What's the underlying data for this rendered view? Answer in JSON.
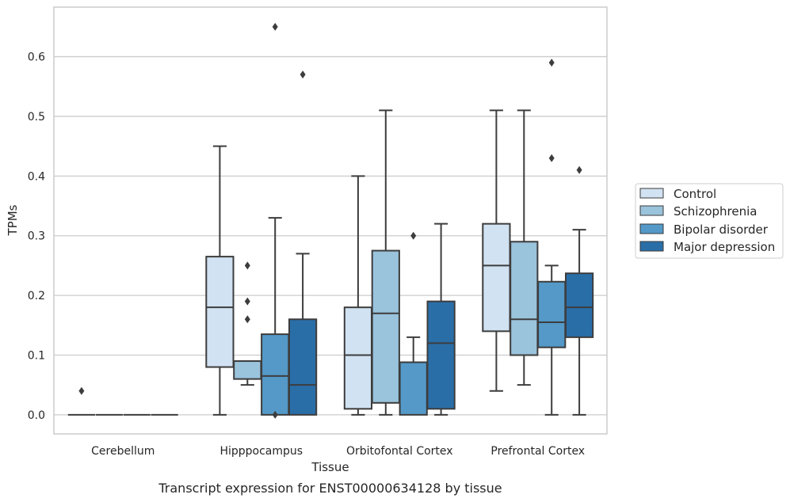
{
  "caption": "Transcript expression for ENST00000634128 by tissue",
  "chart_data": {
    "type": "box",
    "xlabel": "Tissue",
    "ylabel": "TPMs",
    "ylim": [
      -0.032,
      0.683
    ],
    "yticks": [
      0.0,
      0.1,
      0.2,
      0.3,
      0.4,
      0.5,
      0.6
    ],
    "ytick_labels": [
      "0.0",
      "0.1",
      "0.2",
      "0.3",
      "0.4",
      "0.5",
      "0.6"
    ],
    "grid": "horizontal",
    "legend_position": "right",
    "categories": [
      "Cerebellum",
      "Hipppocampus",
      "Orbitofontal Cortex",
      "Prefrontal Cortex"
    ],
    "series": [
      {
        "name": "Control",
        "color": "#d1e2f2",
        "boxes": [
          {
            "q1": 0.0,
            "median": 0.0,
            "q3": 0.0,
            "whisker_low": 0.0,
            "whisker_high": 0.0,
            "outliers": [
              0.04
            ]
          },
          {
            "q1": 0.08,
            "median": 0.18,
            "q3": 0.265,
            "whisker_low": 0.0,
            "whisker_high": 0.45,
            "outliers": []
          },
          {
            "q1": 0.01,
            "median": 0.1,
            "q3": 0.18,
            "whisker_low": 0.0,
            "whisker_high": 0.4,
            "outliers": []
          },
          {
            "q1": 0.14,
            "median": 0.25,
            "q3": 0.32,
            "whisker_low": 0.04,
            "whisker_high": 0.51,
            "outliers": []
          }
        ]
      },
      {
        "name": "Schizophrenia",
        "color": "#9ac3dc",
        "boxes": [
          {
            "q1": 0.0,
            "median": 0.0,
            "q3": 0.0,
            "whisker_low": 0.0,
            "whisker_high": 0.0,
            "outliers": []
          },
          {
            "q1": 0.06,
            "median": 0.09,
            "q3": 0.09,
            "whisker_low": 0.05,
            "whisker_high": 0.09,
            "outliers": [
              0.25,
              0.19,
              0.16
            ]
          },
          {
            "q1": 0.02,
            "median": 0.17,
            "q3": 0.275,
            "whisker_low": 0.0,
            "whisker_high": 0.51,
            "outliers": []
          },
          {
            "q1": 0.1,
            "median": 0.16,
            "q3": 0.29,
            "whisker_low": 0.05,
            "whisker_high": 0.51,
            "outliers": []
          }
        ]
      },
      {
        "name": "Bipolar disorder",
        "color": "#5499c8",
        "boxes": [
          {
            "q1": 0.0,
            "median": 0.0,
            "q3": 0.0,
            "whisker_low": 0.0,
            "whisker_high": 0.0,
            "outliers": []
          },
          {
            "q1": 0.0,
            "median": 0.065,
            "q3": 0.135,
            "whisker_low": 0.0,
            "whisker_high": 0.33,
            "outliers": [
              0.0,
              0.65
            ]
          },
          {
            "q1": 0.0,
            "median": 0.088,
            "q3": 0.088,
            "whisker_low": 0.0,
            "whisker_high": 0.13,
            "outliers": [
              0.3
            ]
          },
          {
            "q1": 0.113,
            "median": 0.155,
            "q3": 0.223,
            "whisker_low": 0.0,
            "whisker_high": 0.25,
            "outliers": [
              0.59,
              0.43
            ]
          }
        ]
      },
      {
        "name": "Major depression",
        "color": "#2a6ea8",
        "boxes": [
          {
            "q1": 0.0,
            "median": 0.0,
            "q3": 0.0,
            "whisker_low": 0.0,
            "whisker_high": 0.0,
            "outliers": []
          },
          {
            "q1": 0.0,
            "median": 0.05,
            "q3": 0.16,
            "whisker_low": 0.0,
            "whisker_high": 0.27,
            "outliers": [
              0.57
            ]
          },
          {
            "q1": 0.01,
            "median": 0.12,
            "q3": 0.19,
            "whisker_low": 0.0,
            "whisker_high": 0.32,
            "outliers": []
          },
          {
            "q1": 0.13,
            "median": 0.18,
            "q3": 0.237,
            "whisker_low": 0.0,
            "whisker_high": 0.31,
            "outliers": [
              0.41
            ]
          }
        ]
      }
    ]
  }
}
